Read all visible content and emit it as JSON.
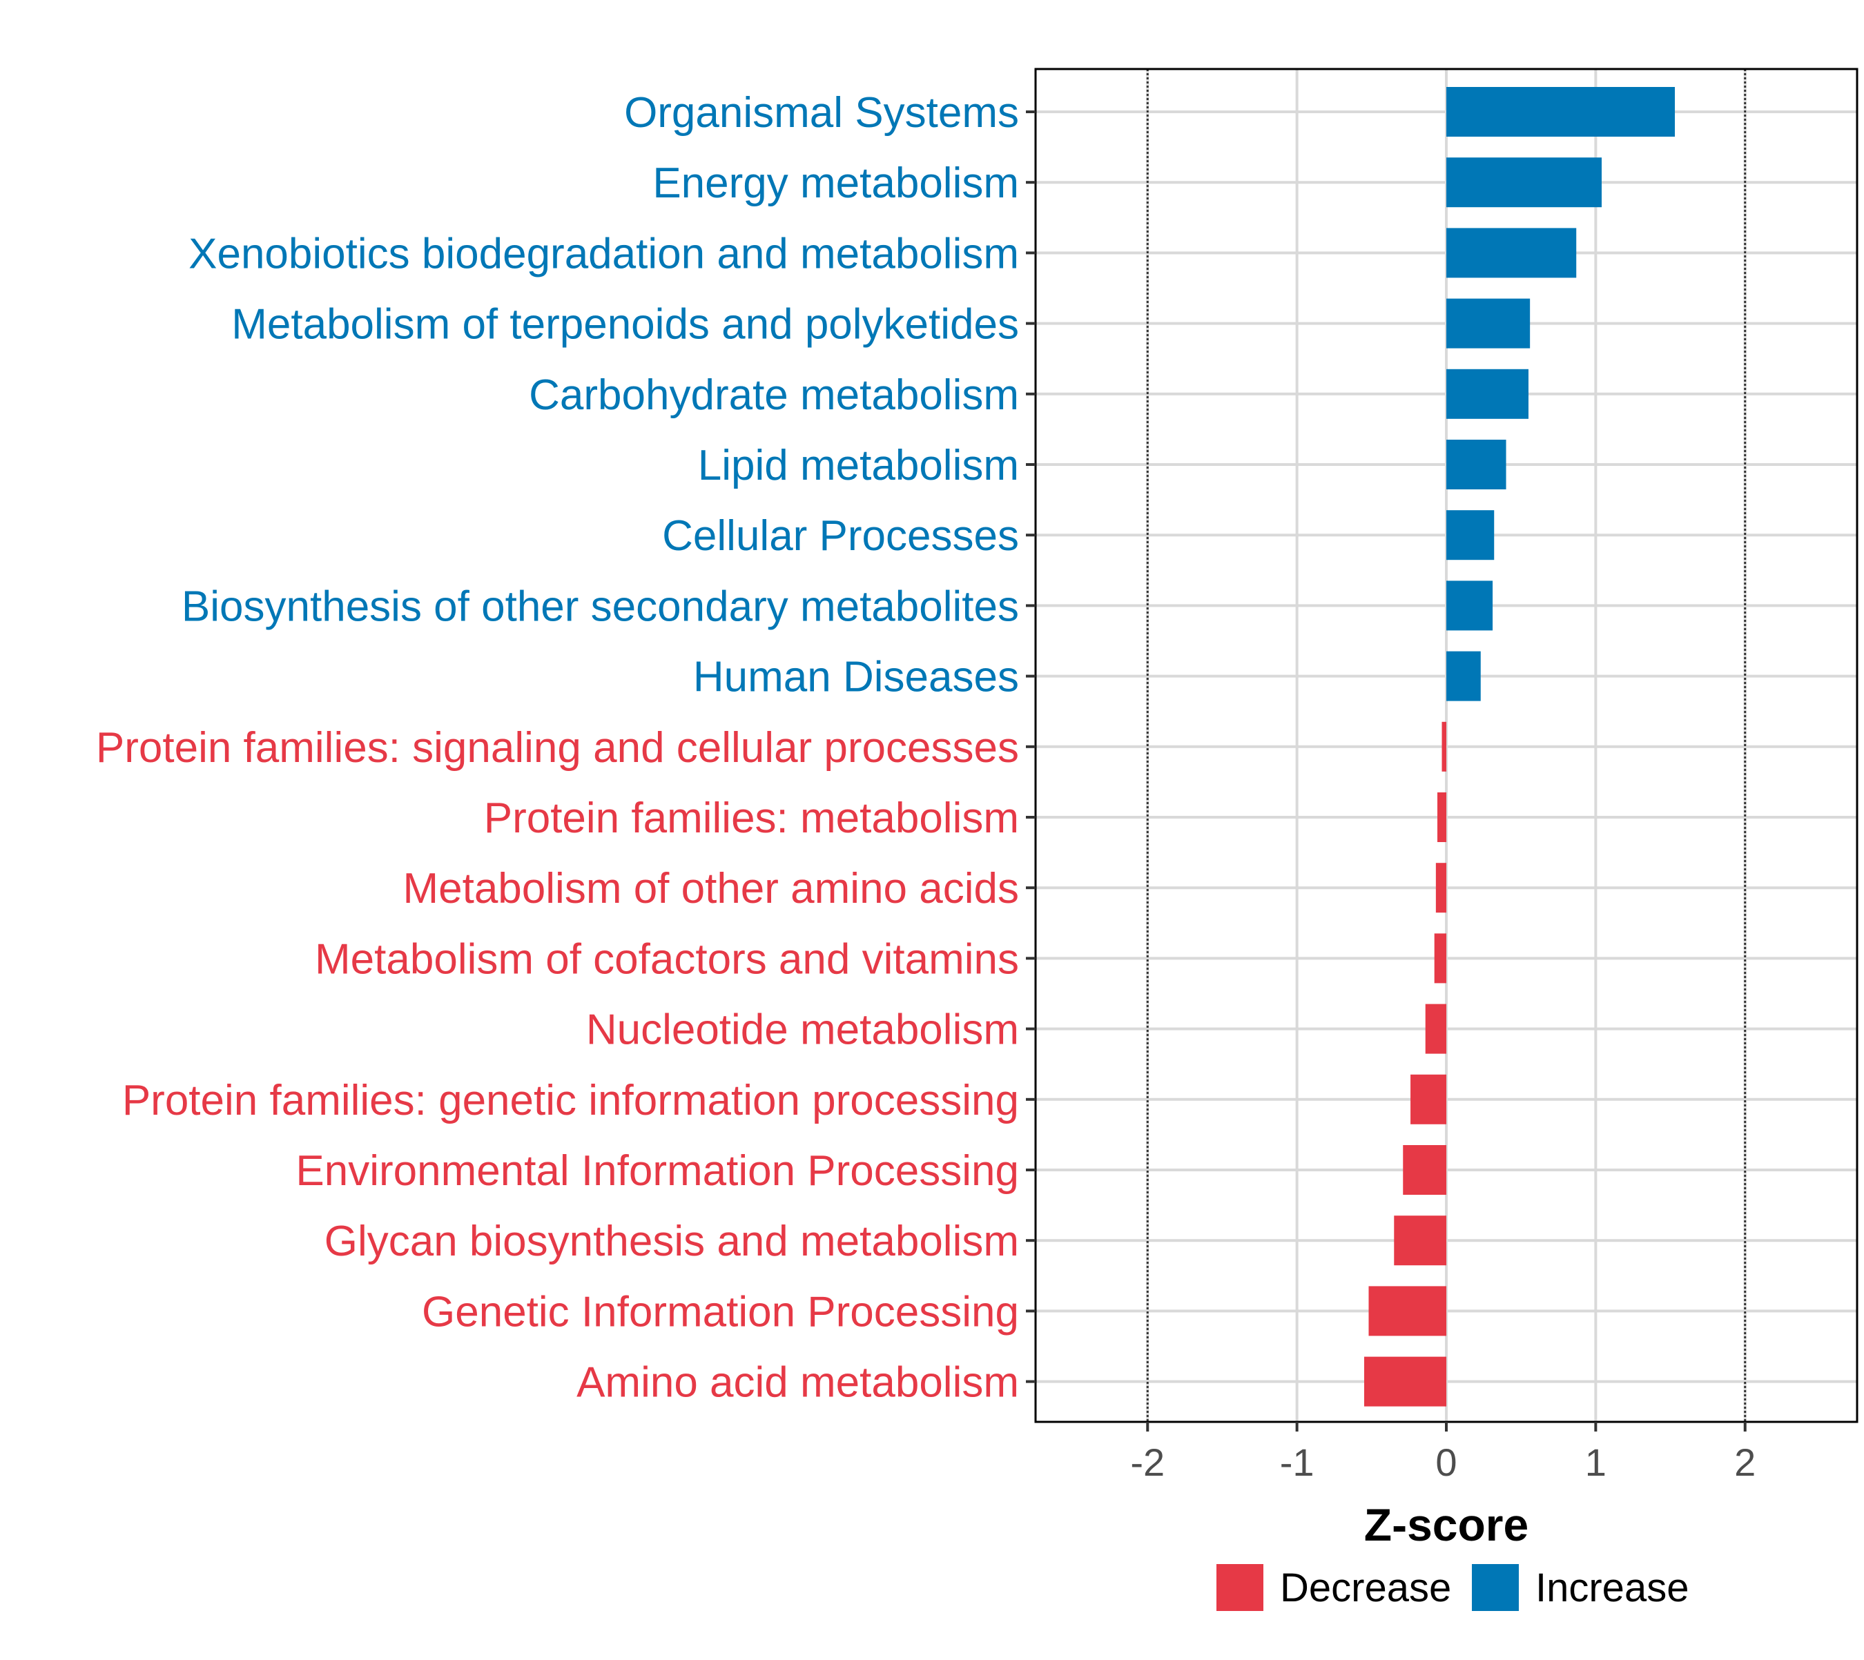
{
  "chart_data": {
    "type": "bar",
    "orientation": "horizontal",
    "title": "",
    "xlabel": "Z-score",
    "ylabel": "",
    "xlim": [
      -2.75,
      2.75
    ],
    "xticks": [
      -2,
      -1,
      0,
      1,
      2
    ],
    "xtick_labels": [
      "-2",
      "-1",
      "0",
      "1",
      "2"
    ],
    "reference_lines": [
      -2,
      2
    ],
    "grid": true,
    "categories": [
      "Organismal Systems",
      "Energy metabolism",
      "Xenobiotics biodegradation and metabolism",
      "Metabolism of terpenoids and polyketides",
      "Carbohydrate metabolism",
      "Lipid metabolism",
      "Cellular Processes",
      "Biosynthesis of other secondary metabolites",
      "Human Diseases",
      "Protein families: signaling and cellular processes",
      "Protein families: metabolism",
      "Metabolism of other amino acids",
      "Metabolism of cofactors and vitamins",
      "Nucleotide metabolism",
      "Protein families: genetic information processing",
      "Environmental Information Processing",
      "Glycan biosynthesis and metabolism",
      "Genetic Information Processing",
      "Amino acid metabolism"
    ],
    "values": [
      1.53,
      1.04,
      0.87,
      0.56,
      0.55,
      0.4,
      0.32,
      0.31,
      0.23,
      -0.03,
      -0.06,
      -0.07,
      -0.08,
      -0.14,
      -0.24,
      -0.29,
      -0.35,
      -0.52,
      -0.55
    ],
    "groups": [
      "Increase",
      "Increase",
      "Increase",
      "Increase",
      "Increase",
      "Increase",
      "Increase",
      "Increase",
      "Increase",
      "Decrease",
      "Decrease",
      "Decrease",
      "Decrease",
      "Decrease",
      "Decrease",
      "Decrease",
      "Decrease",
      "Decrease",
      "Decrease"
    ],
    "legend": {
      "position": "bottom",
      "entries": [
        {
          "label": "Decrease",
          "color": "#e63946"
        },
        {
          "label": "Increase",
          "color": "#0077b6"
        }
      ]
    },
    "colors": {
      "Decrease": "#e63946",
      "Increase": "#0077b6"
    }
  }
}
